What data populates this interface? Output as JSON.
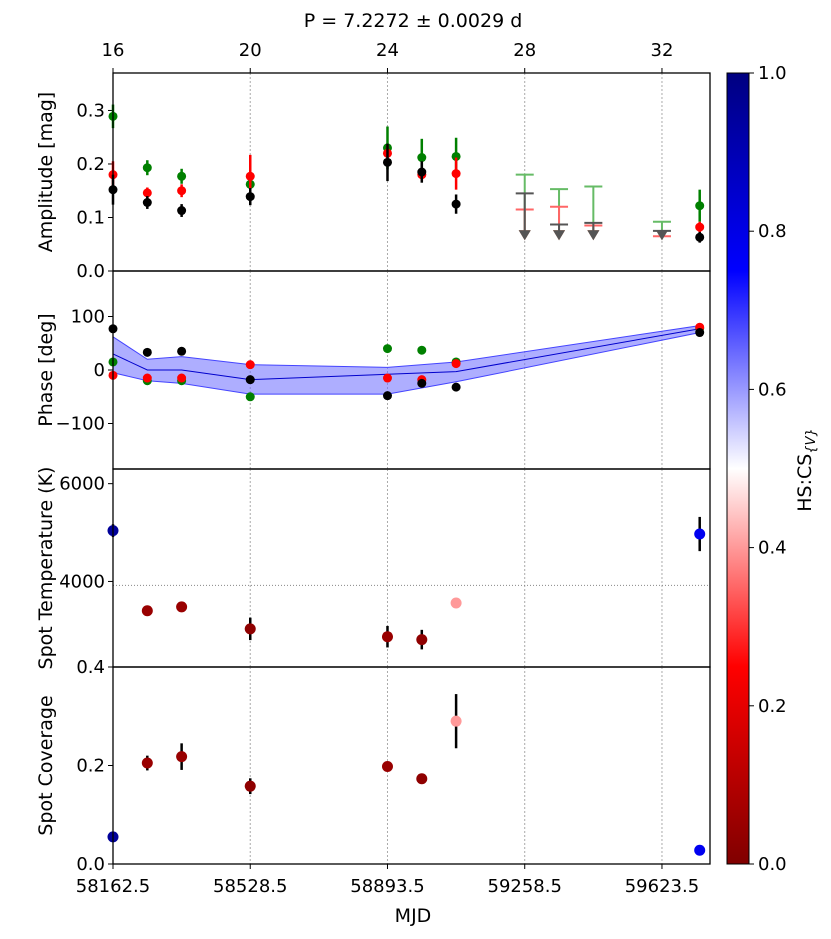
{
  "title": "P = 7.2272 ± 0.0029 d",
  "chart_data": {
    "type": "scatter",
    "xlabel": "MJD",
    "xlim": [
      16,
      33.4
    ],
    "top_axis": {
      "ticks": [
        16,
        20,
        24,
        28,
        32
      ],
      "labels": [
        "16",
        "20",
        "24",
        "28",
        "32"
      ]
    },
    "bottom_axis": {
      "ticks": [
        16,
        20,
        24,
        28,
        32
      ],
      "labels": [
        "58162.5",
        "58528.5",
        "58893.5",
        "59258.5",
        "59623.5"
      ]
    },
    "vlines": [
      16,
      20,
      24,
      28,
      32
    ],
    "colorbar": {
      "label": "HS:CS",
      "label_sub": "{V}",
      "min": 0.0,
      "max": 1.0,
      "ticks": [
        "0.0",
        "0.2",
        "0.4",
        "0.6",
        "0.8",
        "1.0"
      ]
    },
    "panels": [
      {
        "id": "amplitude",
        "ylabel": "Amplitude [mag]",
        "ylim": [
          0.0,
          0.37
        ],
        "yticks": [
          0.0,
          0.1,
          0.2,
          0.3
        ],
        "ytick_labels": [
          "0.0",
          "0.1",
          "0.2",
          "0.3"
        ],
        "series": [
          {
            "name": "green",
            "color": "#008000",
            "points": [
              {
                "x": 16,
                "y": 0.289,
                "err": 0.022
              },
              {
                "x": 17,
                "y": 0.193,
                "err": 0.014
              },
              {
                "x": 18,
                "y": 0.177,
                "err": 0.014
              },
              {
                "x": 20,
                "y": 0.162,
                "err": 0.012
              },
              {
                "x": 24,
                "y": 0.23,
                "err": 0.04
              },
              {
                "x": 25,
                "y": 0.212,
                "err": 0.035
              },
              {
                "x": 26,
                "y": 0.214,
                "err": 0.035
              },
              {
                "x": 33.1,
                "y": 0.122,
                "err": 0.03
              }
            ]
          },
          {
            "name": "red",
            "color": "#ff0000",
            "points": [
              {
                "x": 16,
                "y": 0.18,
                "err": 0.025
              },
              {
                "x": 17,
                "y": 0.146,
                "err": 0.01
              },
              {
                "x": 18,
                "y": 0.15,
                "err": 0.012
              },
              {
                "x": 20,
                "y": 0.177,
                "err": 0.04
              },
              {
                "x": 24,
                "y": 0.22,
                "err": 0.015
              },
              {
                "x": 25,
                "y": 0.18,
                "err": 0.012
              },
              {
                "x": 26,
                "y": 0.182,
                "err": 0.03
              },
              {
                "x": 33.1,
                "y": 0.082,
                "err": 0.01
              }
            ]
          },
          {
            "name": "black",
            "color": "#000000",
            "points": [
              {
                "x": 16,
                "y": 0.152,
                "err": 0.028
              },
              {
                "x": 17,
                "y": 0.128,
                "err": 0.012
              },
              {
                "x": 18,
                "y": 0.113,
                "err": 0.012
              },
              {
                "x": 20,
                "y": 0.139,
                "err": 0.016
              },
              {
                "x": 24,
                "y": 0.203,
                "err": 0.035
              },
              {
                "x": 25,
                "y": 0.185,
                "err": 0.02
              },
              {
                "x": 26,
                "y": 0.125,
                "err": 0.018
              },
              {
                "x": 33.1,
                "y": 0.063,
                "err": 0.01
              }
            ]
          }
        ],
        "upper_limits": [
          {
            "color": "#66bb66",
            "points": [
              {
                "x": 28,
                "y": 0.18
              },
              {
                "x": 29,
                "y": 0.153
              },
              {
                "x": 30,
                "y": 0.158
              },
              {
                "x": 32,
                "y": 0.092
              }
            ]
          },
          {
            "color": "#ff6666",
            "points": [
              {
                "x": 28,
                "y": 0.115
              },
              {
                "x": 29,
                "y": 0.12
              },
              {
                "x": 30,
                "y": 0.085
              },
              {
                "x": 32,
                "y": 0.065
              }
            ]
          },
          {
            "color": "#555555",
            "points": [
              {
                "x": 28,
                "y": 0.145
              },
              {
                "x": 29,
                "y": 0.087
              },
              {
                "x": 30,
                "y": 0.09
              },
              {
                "x": 32,
                "y": 0.075
              }
            ]
          }
        ]
      },
      {
        "id": "phase",
        "ylabel": "Phase [deg]",
        "ylim": [
          -185,
          185
        ],
        "yticks": [
          -100,
          0,
          100
        ],
        "ytick_labels": [
          "−100",
          "0",
          "100"
        ],
        "band": {
          "x": [
            16,
            17,
            18,
            20,
            24,
            26,
            33.1
          ],
          "mid": [
            30,
            0,
            0,
            -18,
            -8,
            -3,
            77
          ],
          "lower": [
            -5,
            -20,
            -25,
            -45,
            -45,
            -22,
            70
          ],
          "upper": [
            62,
            20,
            25,
            10,
            5,
            15,
            83
          ]
        },
        "series": [
          {
            "name": "green",
            "color": "#008000",
            "points": [
              {
                "x": 16,
                "y": 15
              },
              {
                "x": 17,
                "y": -20
              },
              {
                "x": 18,
                "y": -20
              },
              {
                "x": 20,
                "y": -50
              },
              {
                "x": 24,
                "y": 40
              },
              {
                "x": 25,
                "y": 37
              },
              {
                "x": 26,
                "y": 15
              },
              {
                "x": 33.1,
                "y": 78
              }
            ]
          },
          {
            "name": "red",
            "color": "#ff0000",
            "points": [
              {
                "x": 16,
                "y": -10
              },
              {
                "x": 17,
                "y": -15
              },
              {
                "x": 18,
                "y": -15
              },
              {
                "x": 20,
                "y": 10
              },
              {
                "x": 24,
                "y": -15
              },
              {
                "x": 25,
                "y": -18
              },
              {
                "x": 26,
                "y": 12
              },
              {
                "x": 33.1,
                "y": 80
              }
            ]
          },
          {
            "name": "black",
            "color": "#000000",
            "points": [
              {
                "x": 16,
                "y": 77
              },
              {
                "x": 17,
                "y": 33
              },
              {
                "x": 18,
                "y": 35
              },
              {
                "x": 20,
                "y": -18
              },
              {
                "x": 24,
                "y": -48
              },
              {
                "x": 25,
                "y": -25
              },
              {
                "x": 26,
                "y": -32
              },
              {
                "x": 33.1,
                "y": 70
              }
            ]
          }
        ]
      },
      {
        "id": "spot_temperature",
        "ylabel": "Spot Temperature (K)",
        "ylim": [
          2250,
          6300
        ],
        "yticks": [
          4000,
          6000
        ],
        "ytick_labels": [
          "4000",
          "6000"
        ],
        "hline": 3920,
        "points": [
          {
            "x": 16,
            "y": 5040,
            "err": 130,
            "c": 0.95
          },
          {
            "x": 17,
            "y": 3400,
            "err": 0,
            "c": 0.05
          },
          {
            "x": 18,
            "y": 3480,
            "err": 0,
            "c": 0.05
          },
          {
            "x": 20,
            "y": 3030,
            "err": 230,
            "c": 0.03
          },
          {
            "x": 24,
            "y": 2870,
            "err": 220,
            "c": 0.05
          },
          {
            "x": 25,
            "y": 2810,
            "err": 200,
            "c": 0.03
          },
          {
            "x": 26,
            "y": 3560,
            "err": 0,
            "c": 0.4
          },
          {
            "x": 33.1,
            "y": 4970,
            "err": 350,
            "c": 0.78
          }
        ]
      },
      {
        "id": "spot_coverage",
        "ylabel": "Spot Coverage",
        "ylim": [
          0.0,
          0.4
        ],
        "yticks": [
          0.0,
          0.2,
          0.4
        ],
        "ytick_labels": [
          "0.0",
          "0.2",
          "0.4"
        ],
        "points": [
          {
            "x": 16,
            "y": 0.055,
            "err": 0.01,
            "c": 0.95
          },
          {
            "x": 17,
            "y": 0.205,
            "err": 0.015,
            "c": 0.05
          },
          {
            "x": 18,
            "y": 0.218,
            "err": 0.027,
            "c": 0.05
          },
          {
            "x": 20,
            "y": 0.158,
            "err": 0.016,
            "c": 0.03
          },
          {
            "x": 24,
            "y": 0.198,
            "err": 0.01,
            "c": 0.05
          },
          {
            "x": 25,
            "y": 0.173,
            "err": 0.0,
            "c": 0.03
          },
          {
            "x": 26,
            "y": 0.29,
            "err": 0.055,
            "c": 0.4
          },
          {
            "x": 33.1,
            "y": 0.028,
            "err": 0.0,
            "c": 0.78
          }
        ]
      }
    ]
  }
}
